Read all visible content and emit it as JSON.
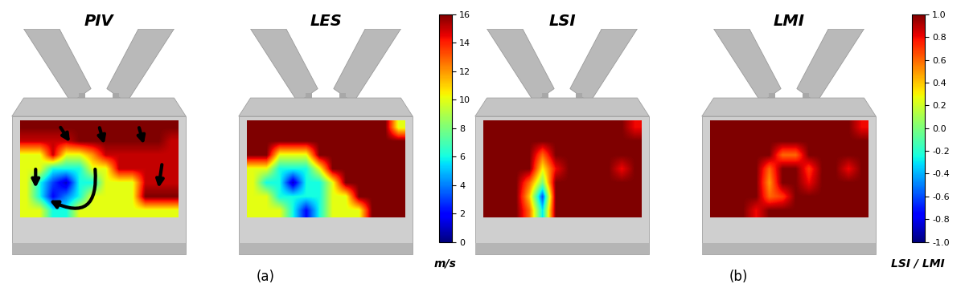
{
  "chart_data": [
    {
      "type": "heatmap",
      "label": "(a)",
      "tick_labels": false,
      "colorbar_label": "m/s",
      "colorbar_range": [
        0,
        16
      ],
      "colorbar_ticks": [
        0,
        2,
        4,
        6,
        8,
        10,
        12,
        14,
        16
      ],
      "panels": [
        {
          "title": "PIV",
          "cells": [
            [
              16,
              16,
              16,
              16,
              16,
              16,
              16,
              16,
              16,
              16,
              16,
              16
            ],
            [
              15,
              15,
              15,
              15,
              16,
              16,
              16,
              16,
              16,
              16,
              16,
              15
            ],
            [
              10,
              10,
              15,
              10,
              10,
              12,
              15,
              15,
              15,
              15,
              15,
              15
            ],
            [
              10,
              10,
              6,
              6,
              6,
              10,
              10,
              15,
              15,
              15,
              15,
              15
            ],
            [
              10,
              6,
              3,
              1,
              6,
              6,
              10,
              10,
              10,
              15,
              15,
              15
            ],
            [
              10,
              6,
              2,
              4,
              6,
              10,
              10,
              10,
              10,
              16,
              16,
              16
            ],
            [
              10,
              10,
              6,
              6,
              10,
              10,
              10,
              10,
              10,
              10,
              10,
              10
            ]
          ]
        },
        {
          "title": "LES",
          "cells": [
            [
              16,
              16,
              16,
              16,
              16,
              16,
              16,
              16,
              16,
              16,
              16,
              10
            ],
            [
              16,
              16,
              16,
              16,
              16,
              16,
              16,
              16,
              16,
              16,
              16,
              16
            ],
            [
              16,
              16,
              10,
              10,
              10,
              16,
              16,
              16,
              16,
              16,
              16,
              16
            ],
            [
              10,
              10,
              6,
              6,
              6,
              10,
              16,
              16,
              16,
              16,
              16,
              16
            ],
            [
              10,
              6,
              6,
              1,
              6,
              6,
              10,
              16,
              16,
              16,
              16,
              16
            ],
            [
              10,
              10,
              6,
              6,
              6,
              6,
              10,
              10,
              16,
              16,
              16,
              16
            ],
            [
              10,
              10,
              10,
              6,
              2,
              6,
              10,
              10,
              10,
              16,
              16,
              16
            ]
          ]
        }
      ]
    },
    {
      "type": "heatmap",
      "label": "(b)",
      "tick_labels": false,
      "colorbar_label": "LSI / LMI",
      "colorbar_range": [
        -1.0,
        1.0
      ],
      "colorbar_ticks": [
        {
          "value": -1.0,
          "label": "-1.0"
        },
        -0.8,
        -0.6,
        -0.4,
        -0.2,
        {
          "value": 0.0,
          "label": "0.0"
        },
        0.2,
        0.4,
        0.6,
        0.8,
        {
          "value": 1.0,
          "label": "1.0"
        }
      ],
      "panels": [
        {
          "title": "LSI",
          "cells": [
            [
              1.0,
              1.0,
              1.0,
              1.0,
              1.0,
              1.0,
              1.0,
              1.0,
              1.0,
              1.0,
              1.0,
              0.8
            ],
            [
              1.0,
              1.0,
              1.0,
              1.0,
              1.0,
              1.0,
              1.0,
              1.0,
              1.0,
              1.0,
              1.0,
              1.0
            ],
            [
              1.0,
              1.0,
              1.0,
              1.0,
              0.6,
              1.0,
              1.0,
              1.0,
              1.0,
              1.0,
              1.0,
              1.0
            ],
            [
              1.0,
              1.0,
              1.0,
              1.0,
              0.3,
              0.8,
              1.0,
              1.0,
              1.0,
              1.0,
              0.8,
              1.0
            ],
            [
              1.0,
              1.0,
              1.0,
              0.6,
              0.0,
              1.0,
              1.0,
              1.0,
              1.0,
              1.0,
              1.0,
              1.0
            ],
            [
              1.0,
              1.0,
              1.0,
              0.4,
              -0.6,
              1.0,
              1.0,
              1.0,
              1.0,
              1.0,
              1.0,
              1.0
            ],
            [
              1.0,
              1.0,
              1.0,
              0.6,
              -0.3,
              1.0,
              1.0,
              1.0,
              1.0,
              1.0,
              1.0,
              1.0
            ]
          ]
        },
        {
          "title": "LMI",
          "cells": [
            [
              1.0,
              1.0,
              1.0,
              1.0,
              1.0,
              1.0,
              1.0,
              1.0,
              1.0,
              1.0,
              1.0,
              0.8
            ],
            [
              1.0,
              1.0,
              1.0,
              1.0,
              1.0,
              1.0,
              1.0,
              1.0,
              1.0,
              1.0,
              1.0,
              1.0
            ],
            [
              1.0,
              1.0,
              1.0,
              1.0,
              1.0,
              0.6,
              0.6,
              1.0,
              1.0,
              1.0,
              1.0,
              1.0
            ],
            [
              1.0,
              1.0,
              1.0,
              1.0,
              0.6,
              1.0,
              1.0,
              0.7,
              1.0,
              1.0,
              0.8,
              1.0
            ],
            [
              1.0,
              1.0,
              1.0,
              1.0,
              0.5,
              1.0,
              1.0,
              0.8,
              1.0,
              1.0,
              1.0,
              1.0
            ],
            [
              1.0,
              1.0,
              1.0,
              1.0,
              0.6,
              0.7,
              1.0,
              1.0,
              1.0,
              1.0,
              1.0,
              1.0
            ],
            [
              1.0,
              1.0,
              1.0,
              0.8,
              1.0,
              1.0,
              1.0,
              1.0,
              1.0,
              1.0,
              1.0,
              1.0
            ]
          ]
        }
      ]
    }
  ]
}
